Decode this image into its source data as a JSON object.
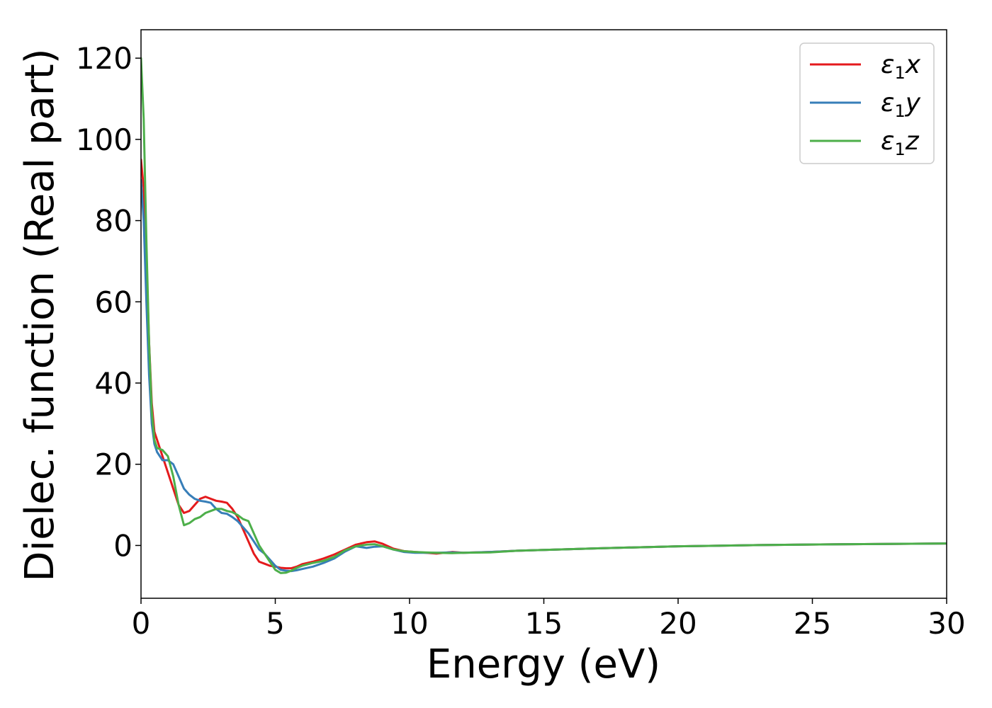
{
  "chart_data": {
    "type": "line",
    "title": "",
    "xlabel": "Energy (eV)",
    "ylabel": "Dielec. function (Real part)",
    "xlim": [
      0,
      30
    ],
    "ylim": [
      -13,
      127
    ],
    "xticks": [
      0,
      5,
      10,
      15,
      20,
      25,
      30
    ],
    "yticks": [
      0,
      20,
      40,
      60,
      80,
      100,
      120
    ],
    "grid": false,
    "legend_position": "top-right",
    "series": [
      {
        "name": "ε₁x",
        "legend_main": "ε",
        "legend_sub": "1",
        "legend_tail": "x",
        "color": "#e41a1c",
        "x": [
          0,
          0.1,
          0.2,
          0.3,
          0.4,
          0.5,
          0.6,
          0.8,
          1.0,
          1.2,
          1.4,
          1.6,
          1.8,
          2.0,
          2.2,
          2.4,
          2.6,
          2.8,
          3.0,
          3.2,
          3.4,
          3.6,
          3.8,
          4.0,
          4.2,
          4.4,
          4.6,
          4.8,
          5.0,
          5.2,
          5.4,
          5.6,
          5.8,
          6.0,
          6.4,
          6.8,
          7.2,
          7.6,
          8.0,
          8.4,
          8.7,
          9.0,
          9.4,
          9.8,
          10.2,
          10.6,
          11.0,
          11.6,
          12.0,
          13.0,
          14.0,
          15.0,
          17.0,
          20.0,
          23.0,
          26.0,
          30.0
        ],
        "y": [
          95,
          88,
          70,
          50,
          35,
          28,
          26,
          22,
          18,
          14,
          10,
          8,
          8.5,
          10,
          11.5,
          12,
          11.5,
          11,
          10.8,
          10.5,
          9,
          7,
          4,
          1,
          -2,
          -4,
          -4.5,
          -5,
          -5.2,
          -5.5,
          -5.6,
          -5.6,
          -5.2,
          -4.6,
          -4.0,
          -3.2,
          -2.2,
          -1.0,
          0.2,
          0.8,
          1.0,
          0.4,
          -0.8,
          -1.4,
          -1.6,
          -1.8,
          -2.0,
          -1.6,
          -1.8,
          -1.6,
          -1.3,
          -1.1,
          -0.7,
          -0.2,
          0.1,
          0.3,
          0.5
        ]
      },
      {
        "name": "ε₁y",
        "legend_main": "ε",
        "legend_sub": "1",
        "legend_tail": "y",
        "color": "#377eb8",
        "x": [
          0,
          0.1,
          0.2,
          0.3,
          0.4,
          0.5,
          0.6,
          0.8,
          1.0,
          1.2,
          1.4,
          1.6,
          1.8,
          2.0,
          2.2,
          2.4,
          2.6,
          2.8,
          3.0,
          3.2,
          3.4,
          3.6,
          3.8,
          4.0,
          4.2,
          4.4,
          4.6,
          4.8,
          5.0,
          5.2,
          5.4,
          5.6,
          5.8,
          6.0,
          6.4,
          6.8,
          7.2,
          7.6,
          8.0,
          8.4,
          8.7,
          9.0,
          9.4,
          9.8,
          10.2,
          10.6,
          11.0,
          11.6,
          12.0,
          13.0,
          14.0,
          15.0,
          17.0,
          20.0,
          23.0,
          26.0,
          30.0
        ],
        "y": [
          90,
          80,
          60,
          42,
          30,
          25,
          23,
          21,
          21,
          20,
          17,
          14,
          12.5,
          11.5,
          11,
          10.8,
          10.5,
          9,
          8,
          7.8,
          7,
          6,
          4.5,
          3,
          1,
          -1,
          -2,
          -3.5,
          -5,
          -6,
          -6.2,
          -6.3,
          -6.1,
          -5.8,
          -5.2,
          -4.3,
          -3.2,
          -1.5,
          -0.2,
          -0.6,
          -0.3,
          -0.2,
          -1.0,
          -1.6,
          -1.8,
          -1.8,
          -1.8,
          -1.7,
          -1.8,
          -1.6,
          -1.3,
          -1.1,
          -0.7,
          -0.2,
          0.1,
          0.3,
          0.5
        ]
      },
      {
        "name": "ε₁z",
        "legend_main": "ε",
        "legend_sub": "1",
        "legend_tail": "z",
        "color": "#4daf4a",
        "x": [
          0,
          0.1,
          0.2,
          0.3,
          0.4,
          0.5,
          0.6,
          0.8,
          1.0,
          1.2,
          1.4,
          1.6,
          1.8,
          2.0,
          2.2,
          2.4,
          2.6,
          2.8,
          3.0,
          3.2,
          3.4,
          3.6,
          3.8,
          4.0,
          4.2,
          4.4,
          4.6,
          4.8,
          5.0,
          5.2,
          5.4,
          5.6,
          5.8,
          6.0,
          6.4,
          6.8,
          7.2,
          7.6,
          8.0,
          8.4,
          8.7,
          9.0,
          9.4,
          9.8,
          10.2,
          10.6,
          11.0,
          11.6,
          12.0,
          13.0,
          14.0,
          15.0,
          17.0,
          20.0,
          23.0,
          26.0,
          30.0
        ],
        "y": [
          120,
          105,
          75,
          50,
          33,
          26,
          24,
          23.5,
          22,
          17,
          10,
          5,
          5.5,
          6.5,
          7,
          8,
          8.5,
          9,
          9,
          8.5,
          8.2,
          7.5,
          6.5,
          6,
          3,
          0,
          -2,
          -4,
          -6,
          -6.8,
          -6.7,
          -6.2,
          -5.5,
          -5.0,
          -4.3,
          -3.8,
          -2.8,
          -1.2,
          -0.2,
          0.2,
          0.3,
          -0.2,
          -1.0,
          -1.4,
          -1.6,
          -1.7,
          -1.8,
          -1.9,
          -1.8,
          -1.7,
          -1.3,
          -1.1,
          -0.7,
          -0.2,
          0.1,
          0.3,
          0.5
        ]
      }
    ]
  }
}
